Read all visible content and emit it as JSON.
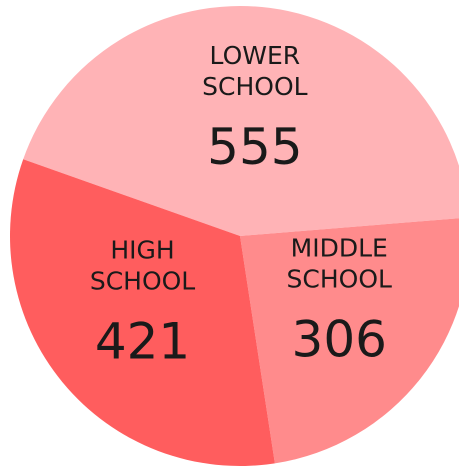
{
  "chart_data": {
    "type": "pie",
    "categories": [
      "LOWER SCHOOL",
      "MIDDLE SCHOOL",
      "HIGH SCHOOL"
    ],
    "values": [
      555,
      306,
      421
    ],
    "colors": [
      "#ffb3b6",
      "#ff8b8c",
      "#ff5d5e"
    ]
  }
}
